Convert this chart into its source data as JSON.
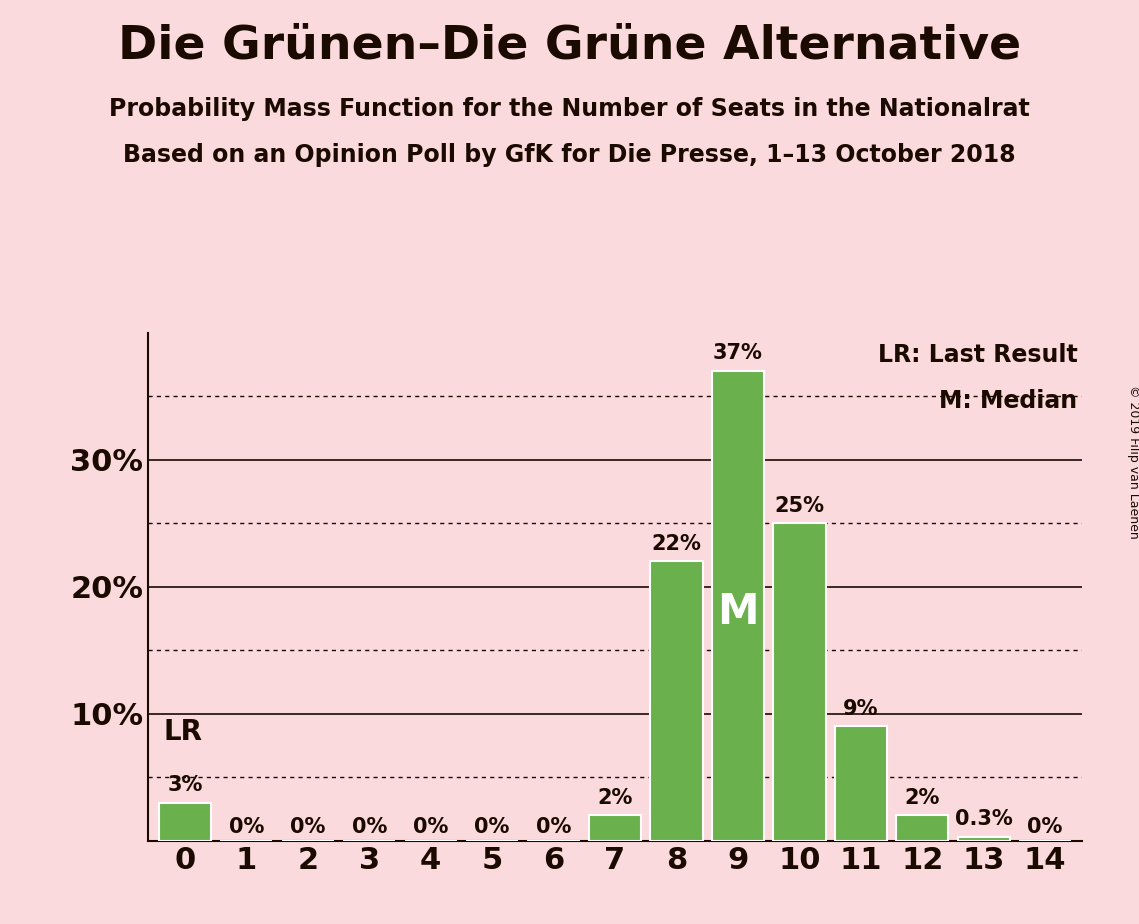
{
  "title": "Die Grünen–Die Grüne Alternative",
  "subtitle1": "Probability Mass Function for the Number of Seats in the Nationalrat",
  "subtitle2": "Based on an Opinion Poll by GfK for Die Presse, 1–13 October 2018",
  "copyright": "© 2019 Filip van Laenen",
  "categories": [
    0,
    1,
    2,
    3,
    4,
    5,
    6,
    7,
    8,
    9,
    10,
    11,
    12,
    13,
    14
  ],
  "values": [
    3,
    0,
    0,
    0,
    0,
    0,
    0,
    2,
    22,
    37,
    25,
    9,
    2,
    0.3,
    0
  ],
  "labels": [
    "3%",
    "0%",
    "0%",
    "0%",
    "0%",
    "0%",
    "0%",
    "2%",
    "22%",
    "37%",
    "25%",
    "9%",
    "2%",
    "0.3%",
    "0%"
  ],
  "bar_color": "#6ab04c",
  "bar_edge_color": "white",
  "background_color": "#fadadd",
  "text_color": "#1a0a00",
  "ytick_positions": [
    0,
    10,
    20,
    30
  ],
  "ytick_labels": [
    "",
    "10%",
    "20%",
    "30%"
  ],
  "dotted_lines": [
    5,
    15,
    25,
    35
  ],
  "solid_lines": [
    10,
    20,
    30
  ],
  "ylim": [
    0,
    40
  ],
  "median_bar": 9,
  "lr_bar": 0,
  "legend_lr": "LR: Last Result",
  "legend_m": "M: Median",
  "title_fontsize": 34,
  "subtitle_fontsize": 17,
  "tick_fontsize": 22,
  "label_fontsize": 15,
  "lr_fontsize": 20,
  "m_fontsize": 30,
  "legend_fontsize": 17
}
